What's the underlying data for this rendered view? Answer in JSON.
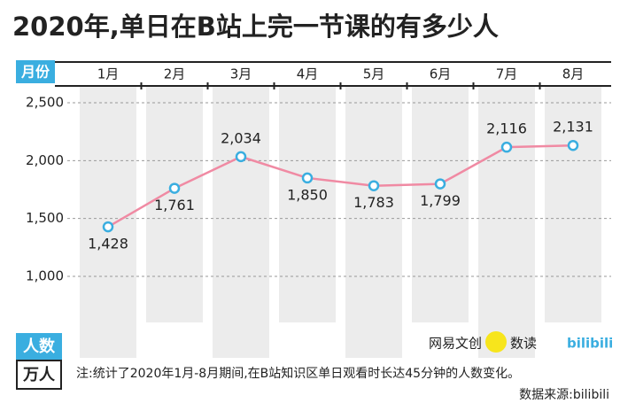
{
  "chart_data": {
    "type": "line",
    "title": "2020年,单日在B站上完一节课的有多少人",
    "x_label": "月份",
    "y_label": "人数",
    "y_unit": "万人",
    "categories": [
      "1月",
      "2月",
      "3月",
      "4月",
      "5月",
      "6月",
      "7月",
      "8月"
    ],
    "values": [
      1428,
      1761,
      2034,
      1850,
      1783,
      1799,
      2116,
      2131
    ],
    "value_labels": [
      "1,428",
      "1,761",
      "2,034",
      "1,850",
      "1,783",
      "1,799",
      "2,116",
      "2,131"
    ],
    "color": "#f08aa3",
    "marker_color": "#3aaee0",
    "ylim": [
      1000,
      2500
    ],
    "yticks": [
      {
        "value": 1000,
        "label": "1,000"
      },
      {
        "value": 1500,
        "label": "1,500"
      },
      {
        "value": 2000,
        "label": "2,000"
      },
      {
        "value": 2500,
        "label": "2,500"
      }
    ],
    "grid": true,
    "logos": [
      "网易文创",
      "数读",
      "bilibili"
    ],
    "note": "注:统计了2020年1月-8月期间,在B站知识区单日观看时长达45分钟的人数变化。",
    "source": "数据来源:bilibili"
  }
}
